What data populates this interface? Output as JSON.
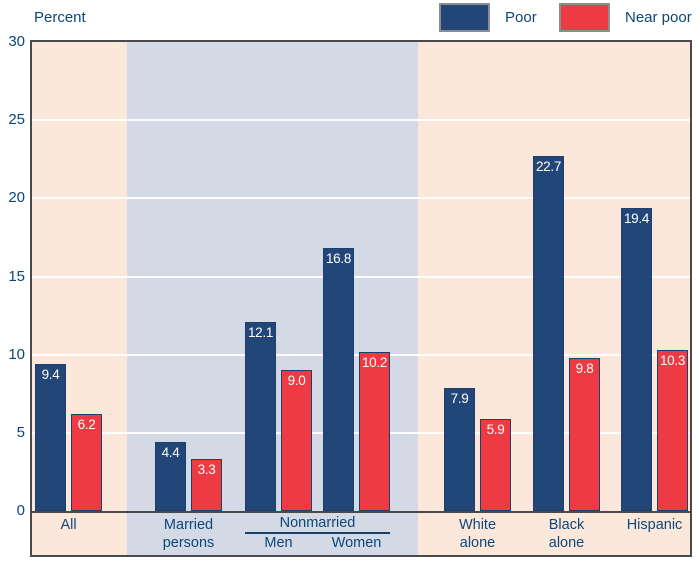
{
  "title": "Percent",
  "colors": {
    "poor_fill": "#224678",
    "near_poor_fill": "#ee3a43",
    "bar_border": "#1c3f6e",
    "peach_band": "#fce8db",
    "blue_band": "#d3d9e5",
    "text_navy": "#0d4778",
    "axis_border": "#4a4a4c",
    "gridline": "#ffffff",
    "value_text": "#ffffff"
  },
  "legend": {
    "poor_label": "Poor",
    "near_poor_label": "Near poor"
  },
  "chart_data": {
    "type": "bar",
    "title": "Percent",
    "xlabel": "",
    "ylabel": "Percent",
    "ylim": [
      0,
      30
    ],
    "yticks": [
      0,
      5,
      10,
      15,
      20,
      25,
      30
    ],
    "grid": true,
    "legend_position": "top-right",
    "categories": [
      "All",
      "Married\npersons",
      "Men",
      "Women",
      "White\nalone",
      "Black\nalone",
      "Hispanic"
    ],
    "span_label": {
      "text": "Nonmarried",
      "from": 2,
      "to": 3
    },
    "series": [
      {
        "name": "Poor",
        "color": "#224678",
        "values": [
          9.4,
          4.4,
          12.1,
          16.8,
          7.9,
          22.7,
          19.4
        ]
      },
      {
        "name": "Near poor",
        "color": "#ee3a43",
        "values": [
          6.2,
          3.3,
          9.0,
          10.2,
          5.9,
          9.8,
          10.3
        ]
      }
    ]
  }
}
